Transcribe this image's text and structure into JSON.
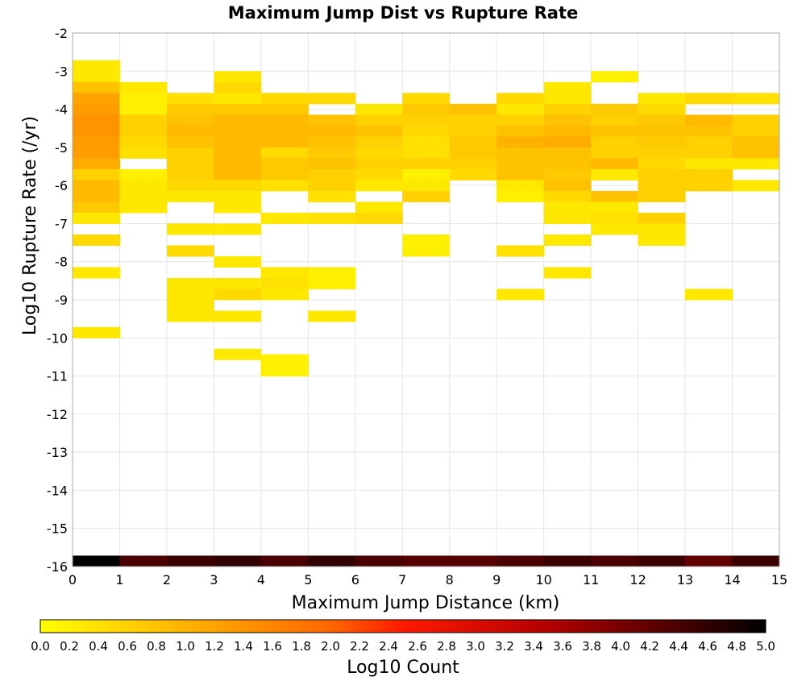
{
  "chart_data": {
    "type": "heatmap",
    "title": "Maximum Jump Dist vs Rupture Rate",
    "xlabel": "Maximum Jump Distance (km)",
    "ylabel": "Log10 Rupture Rate (/yr)",
    "xlim": [
      0,
      15
    ],
    "ylim": [
      -16,
      -2
    ],
    "x_ticks": [
      "0",
      "1",
      "2",
      "3",
      "4",
      "5",
      "6",
      "7",
      "8",
      "9",
      "10",
      "11",
      "12",
      "13",
      "14",
      "15"
    ],
    "y_ticks": [
      "-2",
      "-3",
      "-4",
      "-5",
      "-6",
      "-7",
      "-8",
      "-9",
      "-10",
      "-11",
      "-12",
      "-13",
      "-14",
      "-15",
      "-16"
    ],
    "grid": true,
    "bin_width": 1,
    "bin_height": 0.286,
    "colorbar": {
      "label": "Log10 Count",
      "min": 0.0,
      "max": 5.0,
      "ticks": [
        "0.0",
        "0.2",
        "0.4",
        "0.6",
        "0.8",
        "1.0",
        "1.2",
        "1.4",
        "1.6",
        "1.8",
        "2.0",
        "2.2",
        "2.4",
        "2.6",
        "2.8",
        "3.0",
        "3.2",
        "3.4",
        "3.6",
        "3.8",
        "4.0",
        "4.2",
        "4.4",
        "4.6",
        "4.8",
        "5.0"
      ]
    },
    "cells": [
      [
        0,
        -2.714,
        0.3
      ],
      [
        0,
        -3.0,
        0.3
      ],
      [
        0,
        -3.286,
        0.8
      ],
      [
        0,
        -3.571,
        1.2
      ],
      [
        0,
        -3.857,
        1.3
      ],
      [
        0,
        -4.143,
        1.4
      ],
      [
        0,
        -4.429,
        1.4
      ],
      [
        0,
        -4.714,
        1.3
      ],
      [
        0,
        -5.0,
        1.3
      ],
      [
        0,
        -5.286,
        1.1
      ],
      [
        0,
        -5.571,
        0.6
      ],
      [
        0,
        -5.857,
        0.9
      ],
      [
        0,
        -6.143,
        0.9
      ],
      [
        0,
        -6.429,
        0.7
      ],
      [
        0,
        -6.714,
        0.3
      ],
      [
        0,
        -7.286,
        0.5
      ],
      [
        0,
        -8.143,
        0.3
      ],
      [
        0,
        -9.714,
        0.3
      ],
      [
        0,
        -15.714,
        5.0
      ],
      [
        1,
        -3.286,
        0.3
      ],
      [
        1,
        -3.571,
        0.2
      ],
      [
        1,
        -3.857,
        0.2
      ],
      [
        1,
        -4.143,
        0.6
      ],
      [
        1,
        -4.429,
        0.6
      ],
      [
        1,
        -4.714,
        0.5
      ],
      [
        1,
        -5.0,
        0.4
      ],
      [
        1,
        -5.571,
        0.2
      ],
      [
        1,
        -5.857,
        0.3
      ],
      [
        1,
        -6.143,
        0.3
      ],
      [
        1,
        -6.429,
        0.3
      ],
      [
        1,
        -15.714,
        4.4
      ],
      [
        2,
        -3.571,
        0.4
      ],
      [
        2,
        -3.857,
        0.7
      ],
      [
        2,
        -4.143,
        0.8
      ],
      [
        2,
        -4.429,
        0.9
      ],
      [
        2,
        -4.714,
        0.8
      ],
      [
        2,
        -5.0,
        0.6
      ],
      [
        2,
        -5.286,
        0.6
      ],
      [
        2,
        -5.571,
        0.6
      ],
      [
        2,
        -5.857,
        0.5
      ],
      [
        2,
        -6.143,
        0.3
      ],
      [
        2,
        -7.0,
        0.3
      ],
      [
        2,
        -7.571,
        0.5
      ],
      [
        2,
        -8.429,
        0.3
      ],
      [
        2,
        -8.714,
        0.3
      ],
      [
        2,
        -9.0,
        0.3
      ],
      [
        2,
        -9.286,
        0.3
      ],
      [
        2,
        -15.714,
        4.5
      ],
      [
        3,
        -3.0,
        0.3
      ],
      [
        3,
        -3.286,
        0.5
      ],
      [
        3,
        -3.571,
        0.3
      ],
      [
        3,
        -3.857,
        0.7
      ],
      [
        3,
        -4.143,
        0.9
      ],
      [
        3,
        -4.429,
        0.9
      ],
      [
        3,
        -4.714,
        0.9
      ],
      [
        3,
        -5.0,
        0.9
      ],
      [
        3,
        -5.286,
        0.9
      ],
      [
        3,
        -5.571,
        0.9
      ],
      [
        3,
        -5.857,
        0.5
      ],
      [
        3,
        -6.143,
        0.3
      ],
      [
        3,
        -6.429,
        0.3
      ],
      [
        3,
        -7.0,
        0.3
      ],
      [
        3,
        -7.857,
        0.3
      ],
      [
        3,
        -8.429,
        0.3
      ],
      [
        3,
        -8.714,
        0.5
      ],
      [
        3,
        -9.286,
        0.3
      ],
      [
        3,
        -10.286,
        0.3
      ],
      [
        3,
        -15.714,
        4.6
      ],
      [
        4,
        -3.571,
        0.5
      ],
      [
        4,
        -3.857,
        0.7
      ],
      [
        4,
        -4.143,
        0.9
      ],
      [
        4,
        -4.429,
        0.9
      ],
      [
        4,
        -4.714,
        0.9
      ],
      [
        4,
        -5.0,
        0.5
      ],
      [
        4,
        -5.286,
        0.7
      ],
      [
        4,
        -5.571,
        0.7
      ],
      [
        4,
        -5.857,
        0.4
      ],
      [
        4,
        -6.714,
        0.3
      ],
      [
        4,
        -8.143,
        0.3
      ],
      [
        4,
        -8.429,
        0.4
      ],
      [
        4,
        -8.714,
        0.3
      ],
      [
        4,
        -10.429,
        0.2
      ],
      [
        4,
        -10.714,
        0.2
      ],
      [
        4,
        -15.714,
        4.4
      ],
      [
        5,
        -3.571,
        0.5
      ],
      [
        5,
        -4.143,
        0.8
      ],
      [
        5,
        -4.429,
        0.9
      ],
      [
        5,
        -4.714,
        0.8
      ],
      [
        5,
        -5.0,
        0.7
      ],
      [
        5,
        -5.286,
        0.8
      ],
      [
        5,
        -5.571,
        0.6
      ],
      [
        5,
        -5.857,
        0.6
      ],
      [
        5,
        -6.143,
        0.4
      ],
      [
        5,
        -6.714,
        0.4
      ],
      [
        5,
        -8.143,
        0.2
      ],
      [
        5,
        -8.429,
        0.2
      ],
      [
        5,
        -9.286,
        0.3
      ],
      [
        5,
        -15.714,
        4.6
      ],
      [
        6,
        -3.857,
        0.3
      ],
      [
        6,
        -4.143,
        0.6
      ],
      [
        6,
        -4.429,
        0.8
      ],
      [
        6,
        -4.714,
        0.6
      ],
      [
        6,
        -5.0,
        0.5
      ],
      [
        6,
        -5.286,
        0.6
      ],
      [
        6,
        -5.571,
        0.5
      ],
      [
        6,
        -5.857,
        0.3
      ],
      [
        6,
        -6.429,
        0.3
      ],
      [
        6,
        -6.714,
        0.5
      ],
      [
        6,
        -15.714,
        4.4
      ],
      [
        7,
        -3.571,
        0.5
      ],
      [
        7,
        -3.857,
        0.7
      ],
      [
        7,
        -4.143,
        0.6
      ],
      [
        7,
        -4.429,
        0.5
      ],
      [
        7,
        -4.714,
        0.4
      ],
      [
        7,
        -5.0,
        0.4
      ],
      [
        7,
        -5.286,
        0.6
      ],
      [
        7,
        -5.571,
        0.2
      ],
      [
        7,
        -5.857,
        0.3
      ],
      [
        7,
        -6.143,
        0.6
      ],
      [
        7,
        -7.286,
        0.2
      ],
      [
        7,
        -7.571,
        0.2
      ],
      [
        7,
        -15.714,
        4.3
      ],
      [
        8,
        -3.857,
        0.8
      ],
      [
        8,
        -4.143,
        0.6
      ],
      [
        8,
        -4.429,
        0.6
      ],
      [
        8,
        -4.714,
        0.7
      ],
      [
        8,
        -5.0,
        0.7
      ],
      [
        8,
        -5.286,
        0.6
      ],
      [
        8,
        -5.571,
        0.5
      ],
      [
        8,
        -15.714,
        4.3
      ],
      [
        9,
        -3.571,
        0.5
      ],
      [
        9,
        -3.857,
        0.3
      ],
      [
        9,
        -4.143,
        0.6
      ],
      [
        9,
        -4.429,
        0.8
      ],
      [
        9,
        -4.714,
        1.0
      ],
      [
        9,
        -5.0,
        0.8
      ],
      [
        9,
        -5.286,
        0.8
      ],
      [
        9,
        -5.571,
        0.8
      ],
      [
        9,
        -5.857,
        0.3
      ],
      [
        9,
        -6.143,
        0.2
      ],
      [
        9,
        -7.571,
        0.4
      ],
      [
        9,
        -8.714,
        0.3
      ],
      [
        9,
        -15.714,
        4.4
      ],
      [
        10,
        -3.286,
        0.3
      ],
      [
        10,
        -3.571,
        0.3
      ],
      [
        10,
        -3.857,
        0.6
      ],
      [
        10,
        -4.143,
        0.8
      ],
      [
        10,
        -4.429,
        0.9
      ],
      [
        10,
        -4.714,
        1.1
      ],
      [
        10,
        -5.0,
        0.8
      ],
      [
        10,
        -5.286,
        0.8
      ],
      [
        10,
        -5.571,
        0.7
      ],
      [
        10,
        -5.857,
        0.8
      ],
      [
        10,
        -6.143,
        0.5
      ],
      [
        10,
        -6.429,
        0.3
      ],
      [
        10,
        -6.714,
        0.3
      ],
      [
        10,
        -7.286,
        0.3
      ],
      [
        10,
        -8.143,
        0.3
      ],
      [
        10,
        -15.714,
        4.5
      ],
      [
        11,
        -3.0,
        0.2
      ],
      [
        11,
        -3.857,
        0.7
      ],
      [
        11,
        -4.143,
        0.6
      ],
      [
        11,
        -4.429,
        0.8
      ],
      [
        11,
        -4.714,
        0.6
      ],
      [
        11,
        -5.0,
        0.6
      ],
      [
        11,
        -5.286,
        0.9
      ],
      [
        11,
        -5.571,
        0.3
      ],
      [
        11,
        -6.143,
        0.8
      ],
      [
        11,
        -6.429,
        0.3
      ],
      [
        11,
        -6.714,
        0.4
      ],
      [
        11,
        -7.0,
        0.3
      ],
      [
        11,
        -15.714,
        4.4
      ],
      [
        12,
        -3.571,
        0.3
      ],
      [
        12,
        -3.857,
        0.5
      ],
      [
        12,
        -4.143,
        0.7
      ],
      [
        12,
        -4.429,
        0.8
      ],
      [
        12,
        -4.714,
        0.7
      ],
      [
        12,
        -5.0,
        0.6
      ],
      [
        12,
        -5.286,
        0.5
      ],
      [
        12,
        -5.571,
        0.6
      ],
      [
        12,
        -5.857,
        0.6
      ],
      [
        12,
        -6.143,
        0.6
      ],
      [
        12,
        -6.714,
        0.6
      ],
      [
        12,
        -7.0,
        0.3
      ],
      [
        12,
        -7.286,
        0.3
      ],
      [
        12,
        -15.714,
        4.5
      ],
      [
        13,
        -3.571,
        0.5
      ],
      [
        13,
        -4.143,
        0.9
      ],
      [
        13,
        -4.429,
        0.8
      ],
      [
        13,
        -4.714,
        0.6
      ],
      [
        13,
        -5.0,
        0.6
      ],
      [
        13,
        -5.286,
        0.3
      ],
      [
        13,
        -5.571,
        0.6
      ],
      [
        13,
        -5.857,
        0.6
      ],
      [
        13,
        -8.714,
        0.3
      ],
      [
        13,
        -15.714,
        4.2
      ],
      [
        14,
        -3.571,
        0.4
      ],
      [
        14,
        -4.143,
        0.6
      ],
      [
        14,
        -4.429,
        0.6
      ],
      [
        14,
        -4.714,
        0.8
      ],
      [
        14,
        -5.0,
        0.8
      ],
      [
        14,
        -5.286,
        0.3
      ],
      [
        14,
        -5.857,
        0.3
      ],
      [
        14,
        -15.714,
        4.5
      ]
    ]
  }
}
